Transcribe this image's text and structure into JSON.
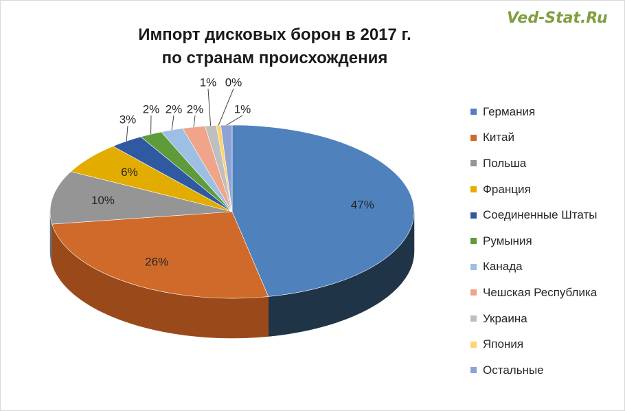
{
  "watermark": "Ved-Stat.Ru",
  "chart_data": {
    "type": "pie",
    "title_line1": "Импорт дисковых борон в 2017 г.",
    "title_line2": "по странам происхождения",
    "legend_position": "right",
    "slices": [
      {
        "name": "Германия",
        "value": 47,
        "label": "47%",
        "color": "#4f81bd",
        "side": "#203448"
      },
      {
        "name": "Китай",
        "value": 26,
        "label": "26%",
        "color": "#cf6a2a",
        "side": "#9a4a1a"
      },
      {
        "name": "Польша",
        "value": 10,
        "label": "10%",
        "color": "#959595",
        "side": "#6b6b6b"
      },
      {
        "name": "Франция",
        "value": 6,
        "label": "6%",
        "color": "#e2ad00",
        "side": "#a57f00"
      },
      {
        "name": "Соединенные Штаты",
        "value": 3,
        "label": "3%",
        "color": "#2f5aa2",
        "side": "#1f3c6d"
      },
      {
        "name": "Румыния",
        "value": 2,
        "label": "2%",
        "color": "#5e9c3b",
        "side": "#3f6a27"
      },
      {
        "name": "Канада",
        "value": 2,
        "label": "2%",
        "color": "#9cbfe3",
        "side": "#6c8aa8"
      },
      {
        "name": "Чешская Республика",
        "value": 2,
        "label": "2%",
        "color": "#f0a48a",
        "side": "#b07660"
      },
      {
        "name": "Украина",
        "value": 1,
        "label": "1%",
        "color": "#bfbfbf",
        "side": "#8c8c8c"
      },
      {
        "name": "Япония",
        "value": 0.4,
        "label": "0%",
        "color": "#ffd36e",
        "side": "#c29f4e"
      },
      {
        "name": "Остальные",
        "value": 1,
        "label": "1%",
        "color": "#8ea2d6",
        "side": "#6475a1"
      }
    ]
  }
}
